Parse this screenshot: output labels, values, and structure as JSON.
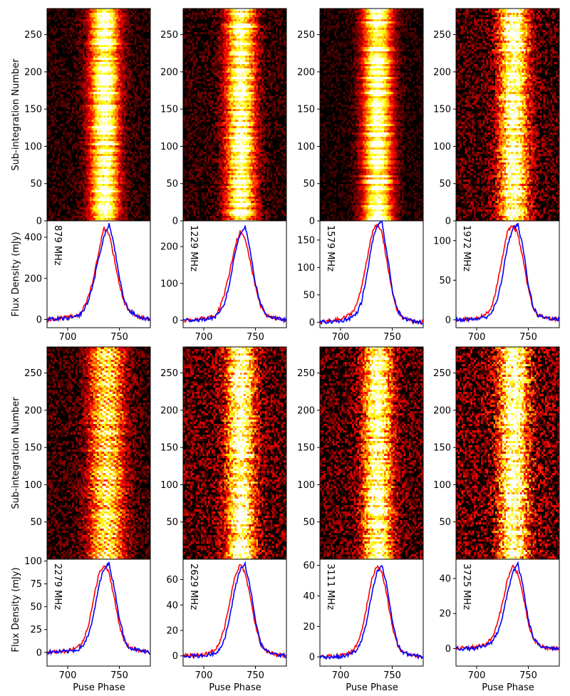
{
  "figure": {
    "ylabel_top": "Sub-integration Number",
    "ylabel_bottom": "Flux Density (mJy)",
    "xlabel": "Puse Phase"
  },
  "chart_data": [
    {
      "type": "heatmap",
      "row": 1,
      "col": 1,
      "xlim": [
        680,
        780
      ],
      "ylim": [
        0,
        285
      ],
      "yticks": [
        0,
        50,
        100,
        150,
        200,
        250
      ],
      "pulse_center": 735,
      "pulse_width": 10,
      "colormap": "hot",
      "noise": 0.25,
      "banding": true
    },
    {
      "type": "line",
      "row": 1,
      "col": 1,
      "frequency_label": "879 MHz",
      "xlim": [
        680,
        780
      ],
      "ylim": [
        -40,
        480
      ],
      "xticks": [
        700,
        750
      ],
      "yticks": [
        0,
        200,
        400
      ],
      "x": [
        680,
        700,
        710,
        715,
        720,
        725,
        730,
        735,
        740,
        745,
        750,
        755,
        760,
        770,
        780
      ],
      "series": [
        {
          "color": "#ff0000",
          "values": [
            0,
            10,
            20,
            50,
            110,
            200,
            330,
            445,
            420,
            300,
            170,
            80,
            40,
            10,
            0
          ]
        },
        {
          "color": "#0000ff",
          "values": [
            0,
            5,
            15,
            40,
            90,
            180,
            300,
            400,
            465,
            360,
            200,
            90,
            40,
            10,
            0
          ]
        }
      ]
    },
    {
      "type": "heatmap",
      "row": 1,
      "col": 2,
      "xlim": [
        680,
        780
      ],
      "ylim": [
        0,
        285
      ],
      "yticks": [
        0,
        50,
        100,
        150,
        200,
        250
      ],
      "pulse_center": 735,
      "pulse_width": 10,
      "colormap": "hot",
      "noise": 0.3,
      "banding": true
    },
    {
      "type": "line",
      "row": 1,
      "col": 2,
      "frequency_label": "1229 MHz",
      "xlim": [
        680,
        780
      ],
      "ylim": [
        -20,
        270
      ],
      "xticks": [
        700,
        750
      ],
      "yticks": [
        0,
        100,
        200
      ],
      "x": [
        680,
        700,
        710,
        715,
        720,
        725,
        730,
        735,
        740,
        745,
        750,
        755,
        760,
        770,
        780
      ],
      "series": [
        {
          "color": "#ff0000",
          "values": [
            0,
            5,
            12,
            30,
            70,
            130,
            200,
            240,
            220,
            160,
            90,
            40,
            15,
            5,
            0
          ]
        },
        {
          "color": "#0000ff",
          "values": [
            0,
            2,
            8,
            18,
            45,
            100,
            180,
            235,
            255,
            190,
            100,
            45,
            15,
            5,
            0
          ]
        }
      ]
    },
    {
      "type": "heatmap",
      "row": 1,
      "col": 3,
      "xlim": [
        680,
        780
      ],
      "ylim": [
        0,
        285
      ],
      "yticks": [
        0,
        50,
        100,
        150,
        200,
        250
      ],
      "pulse_center": 735,
      "pulse_width": 10,
      "colormap": "hot",
      "noise": 0.2,
      "banding": true
    },
    {
      "type": "line",
      "row": 1,
      "col": 3,
      "frequency_label": "1579 MHz",
      "xlim": [
        680,
        780
      ],
      "ylim": [
        -10,
        185
      ],
      "xticks": [
        700,
        750
      ],
      "yticks": [
        0,
        50,
        100,
        150
      ],
      "x": [
        680,
        700,
        710,
        715,
        720,
        725,
        730,
        735,
        740,
        745,
        750,
        755,
        760,
        770,
        780
      ],
      "series": [
        {
          "color": "#ff0000",
          "values": [
            0,
            5,
            15,
            30,
            60,
            110,
            160,
            178,
            165,
            110,
            55,
            20,
            8,
            2,
            0
          ]
        },
        {
          "color": "#0000ff",
          "values": [
            0,
            2,
            8,
            15,
            35,
            80,
            140,
            175,
            182,
            125,
            60,
            22,
            8,
            2,
            0
          ]
        }
      ]
    },
    {
      "type": "heatmap",
      "row": 1,
      "col": 4,
      "xlim": [
        680,
        780
      ],
      "ylim": [
        0,
        285
      ],
      "yticks": [
        0,
        50,
        100,
        150,
        200,
        250
      ],
      "pulse_center": 735,
      "pulse_width": 10,
      "colormap": "hot",
      "noise": 0.45,
      "banding": true
    },
    {
      "type": "line",
      "row": 1,
      "col": 4,
      "frequency_label": "1972 MHz",
      "xlim": [
        680,
        780
      ],
      "ylim": [
        -10,
        125
      ],
      "xticks": [
        700,
        750
      ],
      "yticks": [
        0,
        50,
        100
      ],
      "x": [
        680,
        700,
        710,
        715,
        720,
        725,
        730,
        735,
        740,
        745,
        750,
        755,
        760,
        770,
        780
      ],
      "series": [
        {
          "color": "#ff0000",
          "values": [
            0,
            2,
            8,
            18,
            45,
            80,
            112,
            120,
            108,
            75,
            38,
            12,
            5,
            2,
            0
          ]
        },
        {
          "color": "#0000ff",
          "values": [
            0,
            1,
            4,
            10,
            25,
            55,
            95,
            115,
            120,
            90,
            45,
            15,
            5,
            2,
            0
          ]
        }
      ]
    },
    {
      "type": "heatmap",
      "row": 2,
      "col": 1,
      "xlim": [
        680,
        780
      ],
      "ylim": [
        0,
        285
      ],
      "yticks": [
        50,
        100,
        150,
        200,
        250
      ],
      "pulse_center": 737,
      "pulse_width": 12,
      "colormap": "hot",
      "noise": 0.35,
      "diagonal_stripes": true
    },
    {
      "type": "line",
      "row": 2,
      "col": 1,
      "frequency_label": "2279 MHz",
      "xlim": [
        680,
        780
      ],
      "ylim": [
        -15,
        102
      ],
      "xticks": [
        700,
        750
      ],
      "yticks": [
        0,
        25,
        50,
        75,
        100
      ],
      "x": [
        680,
        700,
        710,
        715,
        720,
        725,
        730,
        735,
        740,
        745,
        750,
        755,
        760,
        770,
        780
      ],
      "series": [
        {
          "color": "#ff0000",
          "values": [
            0,
            2,
            6,
            12,
            30,
            58,
            85,
            96,
            88,
            60,
            30,
            12,
            5,
            2,
            0
          ]
        },
        {
          "color": "#0000ff",
          "values": [
            0,
            1,
            3,
            8,
            18,
            40,
            72,
            92,
            97,
            72,
            38,
            14,
            5,
            2,
            0
          ]
        }
      ]
    },
    {
      "type": "heatmap",
      "row": 2,
      "col": 2,
      "xlim": [
        680,
        780
      ],
      "ylim": [
        0,
        285
      ],
      "yticks": [
        50,
        100,
        150,
        200,
        250
      ],
      "pulse_center": 735,
      "pulse_width": 10,
      "colormap": "hot",
      "noise": 0.55
    },
    {
      "type": "line",
      "row": 2,
      "col": 2,
      "frequency_label": "2629 MHz",
      "xlim": [
        680,
        780
      ],
      "ylim": [
        -8,
        76
      ],
      "xticks": [
        700,
        750
      ],
      "yticks": [
        0,
        20,
        40,
        60
      ],
      "x": [
        680,
        700,
        710,
        715,
        720,
        725,
        730,
        735,
        740,
        745,
        750,
        755,
        760,
        770,
        780
      ],
      "series": [
        {
          "color": "#ff0000",
          "values": [
            0,
            1,
            4,
            9,
            22,
            42,
            62,
            72,
            66,
            46,
            24,
            9,
            4,
            1,
            0
          ]
        },
        {
          "color": "#0000ff",
          "values": [
            0,
            0,
            2,
            5,
            12,
            30,
            52,
            68,
            72,
            54,
            28,
            10,
            4,
            1,
            0
          ]
        }
      ]
    },
    {
      "type": "heatmap",
      "row": 2,
      "col": 3,
      "xlim": [
        680,
        780
      ],
      "ylim": [
        0,
        285
      ],
      "yticks": [
        50,
        100,
        150,
        200,
        250
      ],
      "pulse_center": 735,
      "pulse_width": 10,
      "colormap": "hot",
      "noise": 0.5
    },
    {
      "type": "line",
      "row": 2,
      "col": 3,
      "frequency_label": "3111 MHz",
      "xlim": [
        680,
        780
      ],
      "ylim": [
        -6,
        64
      ],
      "xticks": [
        700,
        750
      ],
      "yticks": [
        0,
        20,
        40,
        60
      ],
      "x": [
        680,
        700,
        710,
        715,
        720,
        725,
        730,
        735,
        740,
        745,
        750,
        755,
        760,
        770,
        780
      ],
      "series": [
        {
          "color": "#ff0000",
          "values": [
            0,
            1,
            3,
            7,
            16,
            32,
            50,
            60,
            56,
            40,
            20,
            8,
            3,
            1,
            0
          ]
        },
        {
          "color": "#0000ff",
          "values": [
            0,
            0,
            2,
            4,
            10,
            22,
            40,
            55,
            60,
            46,
            24,
            9,
            3,
            1,
            0
          ]
        }
      ]
    },
    {
      "type": "heatmap",
      "row": 2,
      "col": 4,
      "xlim": [
        680,
        780
      ],
      "ylim": [
        0,
        285
      ],
      "yticks": [
        50,
        100,
        150,
        200,
        250
      ],
      "pulse_center": 735,
      "pulse_width": 10,
      "colormap": "hot",
      "noise": 0.65
    },
    {
      "type": "line",
      "row": 2,
      "col": 4,
      "frequency_label": "3725 MHz",
      "xlim": [
        680,
        780
      ],
      "ylim": [
        -10,
        51
      ],
      "xticks": [
        700,
        750
      ],
      "yticks": [
        0,
        20,
        40
      ],
      "x": [
        680,
        700,
        710,
        715,
        720,
        725,
        730,
        735,
        740,
        745,
        750,
        755,
        760,
        770,
        780
      ],
      "series": [
        {
          "color": "#ff0000",
          "values": [
            0,
            1,
            3,
            6,
            14,
            26,
            40,
            47,
            43,
            30,
            14,
            5,
            2,
            0,
            0
          ]
        },
        {
          "color": "#0000ff",
          "values": [
            0,
            0,
            2,
            4,
            9,
            18,
            32,
            44,
            48,
            35,
            16,
            6,
            2,
            0,
            0
          ]
        }
      ]
    }
  ]
}
